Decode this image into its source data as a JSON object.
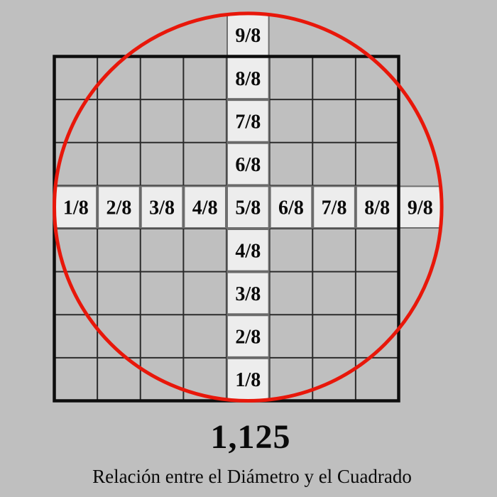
{
  "diagram": {
    "ratio_value": "1,125",
    "caption": "Relación entre el Diámetro y el Cuadrado",
    "grid": {
      "rows": 8,
      "cols": 8,
      "horizontal_labels": [
        "1/8",
        "2/8",
        "3/8",
        "4/8",
        "5/8",
        "6/8",
        "7/8",
        "8/8",
        "9/8"
      ],
      "vertical_labels": [
        "9/8",
        "8/8",
        "7/8",
        "6/8",
        "5/8",
        "4/8",
        "3/8",
        "2/8",
        "1/8"
      ]
    },
    "colors": {
      "background": "#bfbfbf",
      "circle_stroke": "#e8170a",
      "square_border": "#0d0d0d",
      "grid_line": "#2b2b2b",
      "label_cell_fill": "#ededed",
      "label_cell_border": "#6e6e6e",
      "text": "#0a0a0a"
    }
  }
}
